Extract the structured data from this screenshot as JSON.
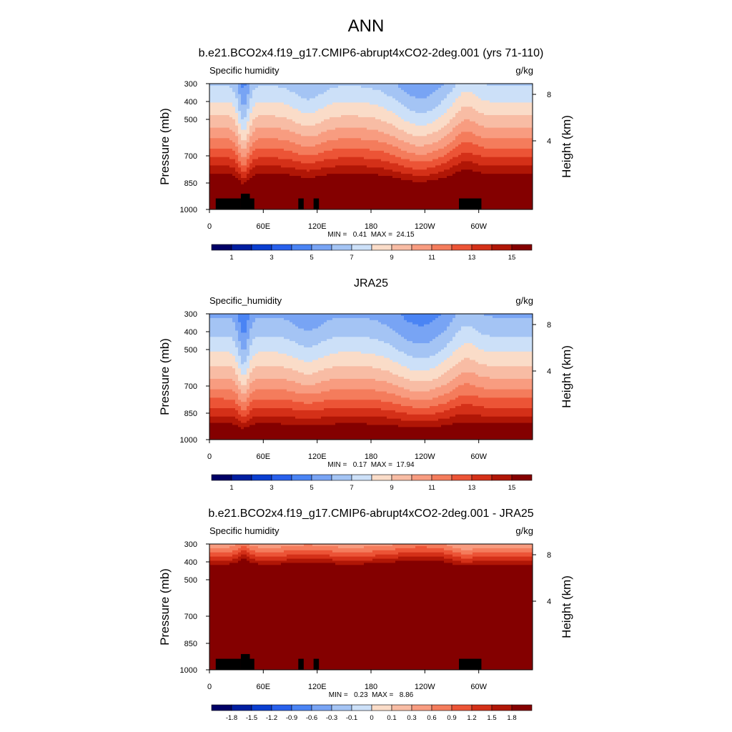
{
  "figure_title": "ANN",
  "chart_data": [
    {
      "type": "heatmap",
      "title": "b.e21.BCO2x4.f19_g17.CMIP6-abrupt4xCO2-2deg.001 (yrs 71-110)",
      "left_label": "Specific humidity",
      "units": "g/kg",
      "xlabel": "",
      "ylabel": "Pressure (mb)",
      "right_label": "Height (km)",
      "x_ticks": [
        "0",
        "60E",
        "120E",
        "180",
        "120W",
        "60W"
      ],
      "y_ticks": [
        "300",
        "400",
        "500",
        "700",
        "850",
        "1000"
      ],
      "right_ticks": [
        "8",
        "4"
      ],
      "stats": "MIN =   0.41  MAX =  24.15",
      "min": 0.41,
      "max": 24.15,
      "colorbar_labels": [
        "1",
        "3",
        "5",
        "7",
        "9",
        "11",
        "13",
        "15"
      ],
      "contour_levels": [
        0,
        1,
        2,
        3,
        4,
        5,
        6,
        7,
        8,
        9,
        10,
        11,
        12,
        13,
        14,
        15
      ],
      "surface_ref": 20,
      "scale_height": 1,
      "sat_top": 0,
      "sat_width": 0,
      "terrain": [
        {
          "lon": [
            7,
            35
          ],
          "pressure_top": 900
        },
        {
          "lon": [
            35,
            45
          ],
          "pressure_top": 860
        },
        {
          "lon": [
            45,
            50
          ],
          "pressure_top": 900
        },
        {
          "lon": [
            99,
            105
          ],
          "pressure_top": 900
        },
        {
          "lon": [
            116,
            122
          ],
          "pressure_top": 900
        },
        {
          "lon": [
            278,
            303
          ],
          "pressure_top": 900
        }
      ]
    },
    {
      "type": "heatmap",
      "title": "JRA25",
      "left_label": "Specific_humidity",
      "units": "g/kg",
      "xlabel": "",
      "ylabel": "Pressure (mb)",
      "right_label": "Height (km)",
      "x_ticks": [
        "0",
        "60E",
        "120E",
        "180",
        "120W",
        "60W"
      ],
      "y_ticks": [
        "300",
        "400",
        "500",
        "700",
        "850",
        "1000"
      ],
      "right_ticks": [
        "8",
        "4"
      ],
      "stats": "MIN =   0.17  MAX =  17.94",
      "min": 0.17,
      "max": 17.94,
      "colorbar_labels": [
        "1",
        "3",
        "5",
        "7",
        "9",
        "11",
        "13",
        "15"
      ],
      "contour_levels": [
        0,
        1,
        2,
        3,
        4,
        5,
        6,
        7,
        8,
        9,
        10,
        11,
        12,
        13,
        14,
        15
      ],
      "surface_ref": 16.5,
      "scale_height": 1,
      "sat_top": 0,
      "sat_width": 0,
      "terrain": []
    },
    {
      "type": "heatmap",
      "title": "b.e21.BCO2x4.f19_g17.CMIP6-abrupt4xCO2-2deg.001 - JRA25",
      "left_label": "Specific humidity",
      "units": "g/kg",
      "xlabel": "",
      "ylabel": "Pressure (mb)",
      "right_label": "Height (km)",
      "x_ticks": [
        "0",
        "60E",
        "120E",
        "180",
        "120W",
        "60W"
      ],
      "y_ticks": [
        "300",
        "400",
        "500",
        "700",
        "850",
        "1000"
      ],
      "right_ticks": [
        "8",
        "4"
      ],
      "stats": "MIN =   0.23  MAX =   8.86",
      "min": 0.23,
      "max": 8.86,
      "colorbar_labels": [
        "-1.8",
        "-1.5",
        "-1.2",
        "-0.9",
        "-0.6",
        "-0.3",
        "-0.1",
        "0",
        "0.1",
        "0.3",
        "0.6",
        "0.9",
        "1.2",
        "1.5",
        "1.8"
      ],
      "contour_levels": [
        -1.8,
        -1.5,
        -1.2,
        -0.9,
        -0.6,
        -0.3,
        -0.1,
        0,
        0.1,
        0.3,
        0.6,
        0.9,
        1.2,
        1.5,
        1.8
      ],
      "surface_ref": 0,
      "scale_height": 0,
      "sat_top": 360,
      "sat_width": 90,
      "terrain": [
        {
          "lon": [
            7,
            35
          ],
          "pressure_top": 900
        },
        {
          "lon": [
            35,
            45
          ],
          "pressure_top": 860
        },
        {
          "lon": [
            45,
            50
          ],
          "pressure_top": 900
        },
        {
          "lon": [
            99,
            105
          ],
          "pressure_top": 900
        },
        {
          "lon": [
            116,
            122
          ],
          "pressure_top": 900
        },
        {
          "lon": [
            278,
            303
          ],
          "pressure_top": 900
        }
      ]
    }
  ],
  "colors": {
    "colorbar": [
      "#000066",
      "#001ea0",
      "#0a3ed0",
      "#2860ec",
      "#4a84f4",
      "#78a4f4",
      "#a4c4f4",
      "#cce0f8",
      "#fadcc8",
      "#f8bca4",
      "#f89c80",
      "#f47c5c",
      "#ec5436",
      "#d43018",
      "#b01606",
      "#840000"
    ],
    "terrain": "#000000",
    "frame": "#000000"
  }
}
